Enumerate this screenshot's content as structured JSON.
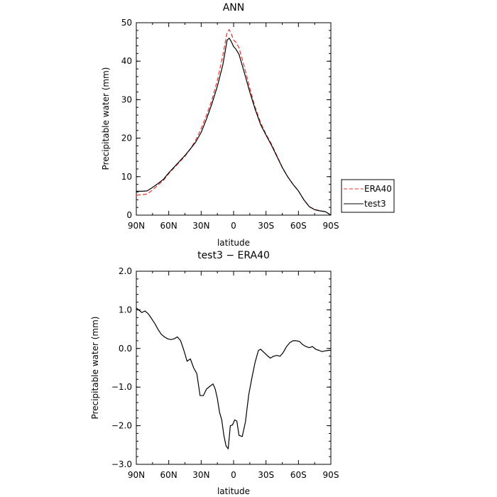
{
  "chart_data": [
    {
      "type": "line",
      "title": "ANN",
      "xlabel": "latitude",
      "ylabel": "Precipitable water  (mm)",
      "xlim": [
        90,
        -90
      ],
      "ylim": [
        0,
        50
      ],
      "x_ticks": [
        90,
        60,
        30,
        0,
        -30,
        -60,
        -90
      ],
      "x_tick_labels": [
        "90N",
        "60N",
        "30N",
        "0",
        "30S",
        "60S",
        "90S"
      ],
      "y_ticks": [
        0,
        10,
        20,
        30,
        40,
        50
      ],
      "y_tick_labels": [
        "0",
        "10",
        "20",
        "30",
        "40",
        "50"
      ],
      "grid": false,
      "legend_position": "right",
      "legend": [
        {
          "label": "ERA40",
          "color": "#e8322b",
          "dash": "dashed"
        },
        {
          "label": "test3",
          "color": "#000000",
          "dash": "solid"
        }
      ],
      "series": [
        {
          "name": "ERA40",
          "color": "#e8322b",
          "dash": "dashed",
          "x": [
            90,
            85,
            80,
            75,
            70,
            65,
            60,
            55,
            50,
            45,
            40,
            35,
            30,
            25,
            20,
            15,
            10,
            6,
            4,
            2,
            0,
            -2,
            -5,
            -10,
            -15,
            -20,
            -25,
            -30,
            -35,
            -40,
            -45,
            -50,
            -55,
            -60,
            -65,
            -70,
            -75,
            -80,
            -85,
            -90
          ],
          "y": [
            5.2,
            5.3,
            5.5,
            6.5,
            7.8,
            9.0,
            10.8,
            12.3,
            13.8,
            15.3,
            17.2,
            19.5,
            22.5,
            26.0,
            30.0,
            35.0,
            41.5,
            47.5,
            48.2,
            47.0,
            45.5,
            45.0,
            43.5,
            38.5,
            33.0,
            28.0,
            24.0,
            21.0,
            18.5,
            15.5,
            12.5,
            10.0,
            8.0,
            6.3,
            4.0,
            2.2,
            1.5,
            1.1,
            0.9,
            0.0
          ]
        },
        {
          "name": "test3",
          "color": "#000000",
          "dash": "solid",
          "x": [
            90,
            85,
            80,
            75,
            70,
            65,
            60,
            55,
            50,
            45,
            40,
            35,
            30,
            25,
            20,
            15,
            10,
            6,
            4,
            2,
            0,
            -2,
            -5,
            -10,
            -15,
            -20,
            -25,
            -30,
            -35,
            -40,
            -45,
            -50,
            -55,
            -60,
            -65,
            -70,
            -75,
            -80,
            -85,
            -90
          ],
          "y": [
            6.2,
            6.2,
            6.3,
            7.2,
            8.2,
            9.3,
            11.0,
            12.5,
            14.0,
            15.5,
            17.2,
            19.0,
            21.5,
            25.0,
            29.0,
            33.5,
            39.0,
            45.5,
            46.0,
            45.0,
            43.8,
            43.2,
            41.8,
            37.0,
            32.0,
            27.5,
            23.5,
            20.8,
            18.2,
            15.3,
            12.4,
            10.0,
            8.0,
            6.3,
            4.0,
            2.2,
            1.4,
            1.1,
            0.9,
            0.0
          ]
        }
      ]
    },
    {
      "type": "line",
      "title": "test3  −  ERA40",
      "xlabel": "latitude",
      "ylabel": "Precipitable water  (mm)",
      "xlim": [
        90,
        -90
      ],
      "ylim": [
        -3.0,
        2.0
      ],
      "x_ticks": [
        90,
        60,
        30,
        0,
        -30,
        -60,
        -90
      ],
      "x_tick_labels": [
        "90N",
        "60N",
        "30N",
        "0",
        "30S",
        "60S",
        "90S"
      ],
      "y_ticks": [
        2.0,
        1.0,
        0.0,
        -1.0,
        -2.0,
        -3.0
      ],
      "y_tick_labels": [
        "2.0",
        "1.0",
        "0.0",
        "−1.0",
        "−2.0",
        "−3.0"
      ],
      "grid": false,
      "series": [
        {
          "name": "",
          "color": "#000000",
          "dash": "solid",
          "x": [
            90,
            87,
            85,
            82,
            79,
            76,
            73,
            70,
            67,
            64,
            61,
            58,
            55,
            52,
            49,
            46,
            43,
            40,
            37,
            34,
            31,
            28,
            25,
            22,
            19,
            17,
            15,
            13,
            11,
            9,
            7,
            5,
            3,
            1,
            -1,
            -3,
            -5,
            -8,
            -11,
            -14,
            -17,
            -20,
            -23,
            -25,
            -28,
            -31,
            -34,
            -37,
            -40,
            -43,
            -46,
            -49,
            -52,
            -55,
            -58,
            -61,
            -64,
            -67,
            -70,
            -73,
            -76,
            -79,
            -82,
            -85,
            -88,
            -90
          ],
          "y": [
            1.05,
            0.98,
            0.93,
            0.97,
            0.9,
            0.78,
            0.65,
            0.5,
            0.37,
            0.3,
            0.25,
            0.23,
            0.25,
            0.3,
            0.2,
            -0.05,
            -0.33,
            -0.27,
            -0.5,
            -0.65,
            -1.22,
            -1.22,
            -1.05,
            -0.98,
            -0.92,
            -1.05,
            -1.3,
            -1.65,
            -1.85,
            -2.25,
            -2.52,
            -2.6,
            -2.0,
            -1.98,
            -1.85,
            -1.88,
            -2.25,
            -2.28,
            -1.9,
            -1.2,
            -0.75,
            -0.35,
            -0.05,
            -0.02,
            -0.1,
            -0.18,
            -0.25,
            -0.2,
            -0.18,
            -0.2,
            -0.1,
            0.05,
            0.15,
            0.2,
            0.2,
            0.18,
            0.1,
            0.05,
            0.02,
            0.05,
            -0.02,
            -0.05,
            -0.08,
            -0.06,
            -0.05,
            -0.05
          ]
        }
      ]
    }
  ]
}
